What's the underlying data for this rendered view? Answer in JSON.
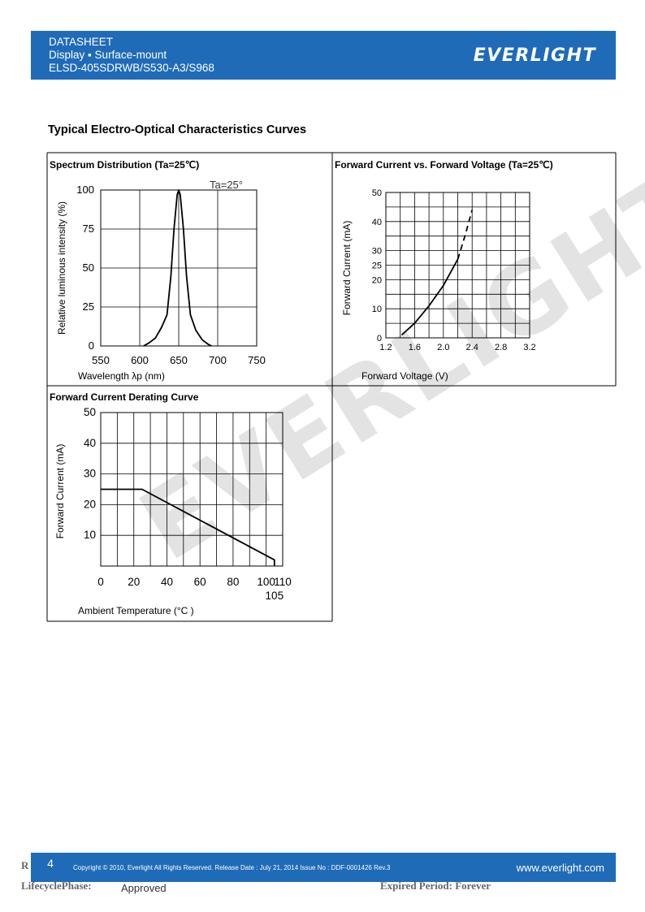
{
  "header": {
    "line1": "DATASHEET",
    "line2": "Display ▪ Surface-mount",
    "line3": "ELSD-405SDRWB/S530-A3/S968",
    "logo": "EVERLIGHT",
    "color": "#1f6bb8"
  },
  "section_title": "Typical Electro-Optical Characteristics Curves",
  "watermark": "EVERLIGHT",
  "panels": {
    "spectrum_title": "Spectrum Distribution (Ta=25℃)",
    "fv_title": "Forward Current vs. Forward Voltage (Ta=25℃)",
    "derating_title": "Forward Current Derating Curve"
  },
  "chart_data": [
    {
      "type": "line",
      "title": "Spectrum Distribution (Ta=25℃)",
      "annotation": "Ta=25°",
      "xlabel": "Wavelength λp (nm)",
      "ylabel": "Relative luminous intensity (%)",
      "xlim": [
        550,
        750
      ],
      "ylim": [
        0,
        100
      ],
      "xticks": [
        "550",
        "600",
        "650",
        "700",
        "750"
      ],
      "yticks": [
        "0",
        "25",
        "50",
        "75",
        "100"
      ],
      "grid": true,
      "series": [
        {
          "x": [
            605,
            612,
            620,
            628,
            635,
            640,
            644,
            648,
            650,
            652,
            656,
            660,
            665,
            672,
            680,
            688,
            692
          ],
          "y": [
            0,
            2,
            5,
            12,
            20,
            45,
            75,
            97,
            100,
            97,
            75,
            45,
            20,
            10,
            4,
            1,
            0
          ]
        }
      ]
    },
    {
      "type": "line",
      "title": "Forward Current vs. Forward Voltage (Ta=25℃)",
      "xlabel": "Forward Voltage (V)",
      "ylabel": "Forward Current (mA)",
      "xlim": [
        1.2,
        3.2
      ],
      "ylim": [
        0,
        50
      ],
      "xticks": [
        "1.2",
        "1.6",
        "2.0",
        "2.4",
        "2.8",
        "3.2"
      ],
      "yticks": [
        "0",
        "10",
        "20",
        "25",
        "30",
        "40",
        "50"
      ],
      "grid": true,
      "series": [
        {
          "x": [
            1.42,
            1.6,
            1.8,
            2.0,
            2.2
          ],
          "y": [
            1,
            5,
            11,
            18,
            27
          ]
        },
        {
          "x": [
            2.2,
            2.3,
            2.4
          ],
          "y": [
            27,
            35,
            44
          ],
          "style": "dashed"
        }
      ]
    },
    {
      "type": "line",
      "title": "Forward Current Derating Curve",
      "xlabel": "Ambient Temperature (°C )",
      "ylabel": "Forward Current (mA)",
      "xlim": [
        0,
        110
      ],
      "ylim": [
        0,
        50
      ],
      "xticks": [
        "0",
        "20",
        "40",
        "60",
        "80",
        "100",
        "110"
      ],
      "extra_xtick": "105",
      "yticks": [
        "10",
        "20",
        "30",
        "40",
        "50"
      ],
      "grid": true,
      "series": [
        {
          "x": [
            0,
            25,
            105,
            105
          ],
          "y": [
            25,
            25,
            2,
            0
          ]
        }
      ]
    }
  ],
  "footer": {
    "page": "4",
    "copyright": "Copyright © 2010, Everlight All Rights Reserved. Release Date : July 21, 2014 Issue No : DDF-0001426 Rev.3",
    "website": "www.everlight.com"
  },
  "bottom": {
    "r": "R",
    "lifecycle": "LifecyclePhase:",
    "approved": "Approved",
    "expired": "Expired Period: Forever"
  }
}
